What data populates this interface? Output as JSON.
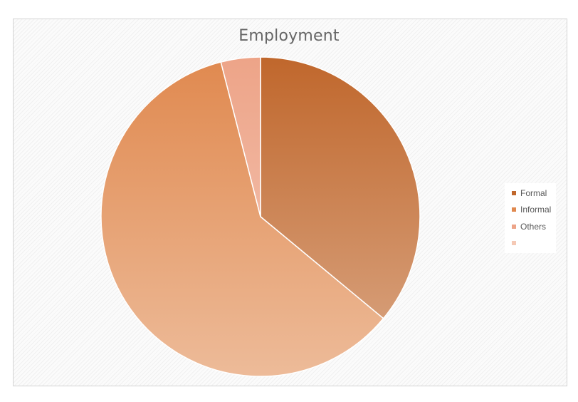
{
  "chart_data": {
    "type": "pie",
    "title": "Employment",
    "categories": [
      "Formal",
      "Informal",
      "Others",
      ""
    ],
    "values": [
      36,
      60,
      4,
      0
    ],
    "colors": [
      "#c0672c",
      "#e0894f",
      "#eda488",
      "#f5c9b5"
    ],
    "legend_position": "right"
  }
}
